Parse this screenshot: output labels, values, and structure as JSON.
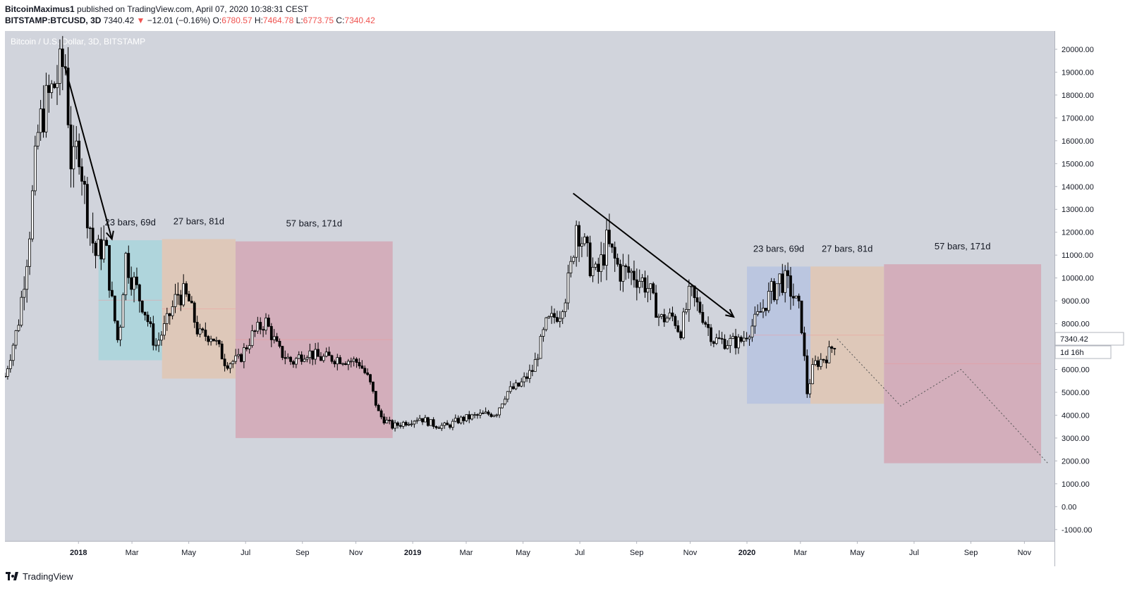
{
  "header": {
    "author": "BitcoinMaximus1",
    "published": "published on TradingView.com, April 07, 2020 10:38:31 CEST",
    "symbol": "BITSTAMP:BTCUSD, 3D",
    "last": "7340.42",
    "change_arrow": "▼",
    "change": "−12.01 (−0.16%)",
    "o_label": "O:",
    "o": "6780.57",
    "h_label": "H:",
    "h": "7464.78",
    "l_label": "L:",
    "l": "6773.75",
    "c_label": "C:",
    "c": "7340.42"
  },
  "footer": {
    "brand": "TradingView",
    "icon": "tradingview-logo-icon"
  },
  "colors": {
    "background": "#d1d4dc",
    "candle_up": "#ffffff",
    "candle_down": "#000000",
    "box_blue_teal": "#a9d5dc",
    "box_orange": "#e1c5b3",
    "box_red": "#d4a7b5",
    "box_blue": "#b7c3e0",
    "price_tag": "#ffffff"
  },
  "chart_data": {
    "type": "candlestick",
    "title": "Bitcoin / U.S. Dollar, 3D, BITSTAMP",
    "ylim": [
      -1500,
      20800
    ],
    "y_ticks": [
      "-1000.00",
      "0.00",
      "1000.00",
      "2000.00",
      "3000.00",
      "4000.00",
      "5000.00",
      "6000.00",
      "7000.00",
      "8000.00",
      "9000.00",
      "10000.00",
      "11000.00",
      "12000.00",
      "13000.00",
      "14000.00",
      "15000.00",
      "16000.00",
      "17000.00",
      "18000.00",
      "19000.00",
      "20000.00"
    ],
    "x_ticks": [
      {
        "label": "2018",
        "t": 2018.0,
        "bold": true
      },
      {
        "label": "Mar",
        "t": 2018.16
      },
      {
        "label": "May",
        "t": 2018.33
      },
      {
        "label": "Jul",
        "t": 2018.5
      },
      {
        "label": "Sep",
        "t": 2018.67
      },
      {
        "label": "Nov",
        "t": 2018.83
      },
      {
        "label": "2019",
        "t": 2019.0,
        "bold": true
      },
      {
        "label": "Mar",
        "t": 2019.16
      },
      {
        "label": "May",
        "t": 2019.33
      },
      {
        "label": "Jul",
        "t": 2019.5
      },
      {
        "label": "Sep",
        "t": 2019.67
      },
      {
        "label": "Nov",
        "t": 2019.83
      },
      {
        "label": "2020",
        "t": 2020.0,
        "bold": true
      },
      {
        "label": "Mar",
        "t": 2020.16
      },
      {
        "label": "May",
        "t": 2020.33
      },
      {
        "label": "Jul",
        "t": 2020.5
      },
      {
        "label": "Sep",
        "t": 2020.67
      },
      {
        "label": "Nov",
        "t": 2020.83
      }
    ],
    "xlim": [
      2017.78,
      2020.92
    ],
    "price_path": [
      [
        2017.78,
        5700
      ],
      [
        2017.82,
        8000
      ],
      [
        2017.85,
        11500
      ],
      [
        2017.88,
        16500
      ],
      [
        2017.9,
        17500
      ],
      [
        2017.96,
        19500
      ],
      [
        2017.98,
        14500
      ],
      [
        2018.0,
        16000
      ],
      [
        2018.02,
        13500
      ],
      [
        2018.05,
        11000
      ],
      [
        2018.08,
        11500
      ],
      [
        2018.1,
        9000
      ],
      [
        2018.12,
        7000
      ],
      [
        2018.14,
        11000
      ],
      [
        2018.16,
        10000
      ],
      [
        2018.2,
        8500
      ],
      [
        2018.23,
        7000
      ],
      [
        2018.26,
        7900
      ],
      [
        2018.3,
        9400
      ],
      [
        2018.33,
        9000
      ],
      [
        2018.36,
        7500
      ],
      [
        2018.4,
        7500
      ],
      [
        2018.44,
        6300
      ],
      [
        2018.48,
        6400
      ],
      [
        2018.52,
        7500
      ],
      [
        2018.56,
        8100
      ],
      [
        2018.6,
        6800
      ],
      [
        2018.64,
        6300
      ],
      [
        2018.68,
        6800
      ],
      [
        2018.72,
        6500
      ],
      [
        2018.78,
        6500
      ],
      [
        2018.84,
        6300
      ],
      [
        2018.87,
        5500
      ],
      [
        2018.9,
        4000
      ],
      [
        2018.94,
        3500
      ],
      [
        2018.98,
        3700
      ],
      [
        2019.02,
        3900
      ],
      [
        2019.06,
        3600
      ],
      [
        2019.1,
        3500
      ],
      [
        2019.14,
        3800
      ],
      [
        2019.2,
        4000
      ],
      [
        2019.25,
        4100
      ],
      [
        2019.28,
        5000
      ],
      [
        2019.32,
        5300
      ],
      [
        2019.36,
        6000
      ],
      [
        2019.4,
        8000
      ],
      [
        2019.44,
        8500
      ],
      [
        2019.47,
        10000
      ],
      [
        2019.49,
        12500
      ],
      [
        2019.52,
        11000
      ],
      [
        2019.55,
        10000
      ],
      [
        2019.58,
        11500
      ],
      [
        2019.62,
        10300
      ],
      [
        2019.66,
        10200
      ],
      [
        2019.7,
        9700
      ],
      [
        2019.74,
        8200
      ],
      [
        2019.78,
        8300
      ],
      [
        2019.8,
        7600
      ],
      [
        2019.83,
        9300
      ],
      [
        2019.86,
        8600
      ],
      [
        2019.9,
        7300
      ],
      [
        2019.94,
        7200
      ],
      [
        2019.98,
        7200
      ],
      [
        2020.02,
        8000
      ],
      [
        2020.06,
        9000
      ],
      [
        2020.1,
        10000
      ],
      [
        2020.13,
        9500
      ],
      [
        2020.16,
        8500
      ],
      [
        2020.18,
        5000
      ],
      [
        2020.2,
        6200
      ],
      [
        2020.24,
        6600
      ],
      [
        2020.27,
        7340
      ]
    ],
    "projection_path": [
      [
        2020.27,
        7340
      ],
      [
        2020.46,
        4400
      ],
      [
        2020.64,
        6000
      ],
      [
        2020.9,
        1900
      ]
    ],
    "highlight_boxes": [
      {
        "label": "23 bars, 69d",
        "x0": 2018.06,
        "x1": 2018.25,
        "y0": 6400,
        "y1": 11650,
        "color": "box_blue_teal"
      },
      {
        "label": "27 bars, 81d",
        "x0": 2018.25,
        "x1": 2018.47,
        "y0": 5600,
        "y1": 11700,
        "color": "box_orange"
      },
      {
        "label": "57 bars, 171d",
        "x0": 2018.47,
        "x1": 2018.94,
        "y0": 3000,
        "y1": 11600,
        "color": "box_red"
      },
      {
        "label": "23 bars, 69d",
        "x0": 2020.0,
        "x1": 2020.19,
        "y0": 4500,
        "y1": 10500,
        "color": "box_blue"
      },
      {
        "label": "27 bars, 81d",
        "x0": 2020.19,
        "x1": 2020.41,
        "y0": 4500,
        "y1": 10500,
        "color": "box_orange"
      },
      {
        "label": "57 bars, 171d",
        "x0": 2020.41,
        "x1": 2020.88,
        "y0": 1900,
        "y1": 10600,
        "color": "box_red"
      }
    ],
    "trendlines": [
      {
        "from": [
          2017.96,
          19200
        ],
        "to": [
          2018.1,
          11700
        ],
        "arrow": true
      },
      {
        "from": [
          2019.48,
          13700
        ],
        "to": [
          2019.96,
          8300
        ],
        "arrow": true
      }
    ],
    "price_label": "7340.42",
    "countdown_label": "1d 16h"
  }
}
